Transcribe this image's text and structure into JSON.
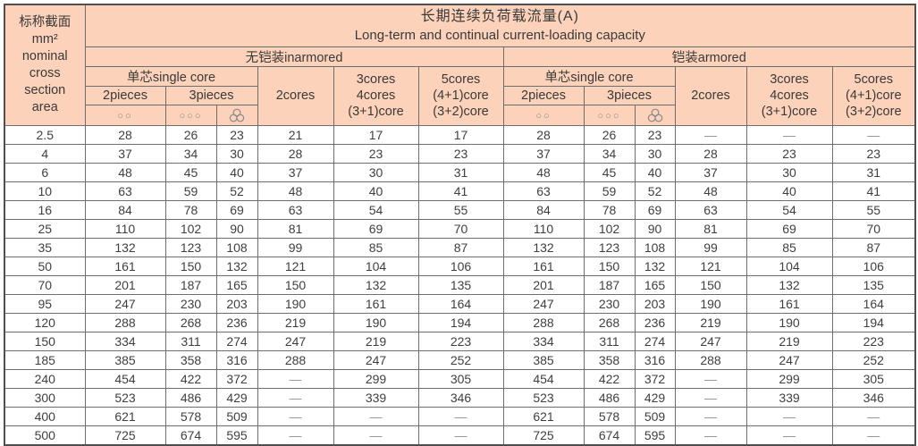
{
  "colors": {
    "header_bg": "#fcd2ba",
    "inner_border": "#6e6e6e",
    "outer_border": "#4f4f4f",
    "text": "#3a3a3a",
    "dash_text": "#919191"
  },
  "table": {
    "corner": {
      "lines": [
        "标称截面",
        "mm²",
        "nominal",
        "cross",
        "section",
        "area"
      ]
    },
    "title": {
      "zh": "长期连续负荷载流量(A)",
      "en": "Long-term and continual current-loading capacity"
    },
    "section_unarmored": "无铠装inarmored",
    "section_armored": "铠装armored",
    "single_core": "单芯single core",
    "two_pieces": "2pieces",
    "three_pieces": "3pieces",
    "two_cores": "2cores",
    "three_four_cores_lines": [
      "3cores",
      "4cores",
      "(3+1)core"
    ],
    "five_cores_lines": [
      "5cores",
      "(4+1)core",
      "(3+2)core"
    ],
    "symbols": {
      "two_circles": "○○",
      "three_circles": "○○○",
      "trefoil": "trefoil-three-circles"
    },
    "rows": [
      [
        "2.5",
        "28",
        "26",
        "23",
        "21",
        "17",
        "17",
        "28",
        "26",
        "23",
        "—",
        "—",
        "—"
      ],
      [
        "4",
        "37",
        "34",
        "30",
        "28",
        "23",
        "23",
        "37",
        "34",
        "30",
        "28",
        "23",
        "23"
      ],
      [
        "6",
        "48",
        "45",
        "40",
        "37",
        "30",
        "31",
        "48",
        "45",
        "40",
        "37",
        "30",
        "31"
      ],
      [
        "10",
        "63",
        "59",
        "52",
        "48",
        "40",
        "41",
        "63",
        "59",
        "52",
        "48",
        "40",
        "41"
      ],
      [
        "16",
        "84",
        "78",
        "69",
        "63",
        "54",
        "55",
        "84",
        "78",
        "69",
        "63",
        "54",
        "55"
      ],
      [
        "25",
        "110",
        "102",
        "90",
        "81",
        "69",
        "70",
        "110",
        "102",
        "90",
        "81",
        "69",
        "70"
      ],
      [
        "35",
        "132",
        "123",
        "108",
        "99",
        "85",
        "87",
        "132",
        "123",
        "108",
        "99",
        "85",
        "87"
      ],
      [
        "50",
        "161",
        "150",
        "132",
        "121",
        "104",
        "106",
        "161",
        "150",
        "132",
        "121",
        "104",
        "106"
      ],
      [
        "70",
        "201",
        "187",
        "165",
        "150",
        "132",
        "135",
        "201",
        "187",
        "165",
        "150",
        "132",
        "135"
      ],
      [
        "95",
        "247",
        "230",
        "203",
        "190",
        "161",
        "164",
        "247",
        "230",
        "203",
        "190",
        "161",
        "164"
      ],
      [
        "120",
        "288",
        "268",
        "236",
        "219",
        "190",
        "194",
        "288",
        "268",
        "236",
        "219",
        "190",
        "194"
      ],
      [
        "150",
        "334",
        "311",
        "274",
        "247",
        "219",
        "223",
        "334",
        "311",
        "274",
        "247",
        "219",
        "223"
      ],
      [
        "185",
        "385",
        "358",
        "316",
        "288",
        "247",
        "252",
        "385",
        "358",
        "316",
        "288",
        "247",
        "252"
      ],
      [
        "240",
        "454",
        "422",
        "372",
        "—",
        "299",
        "305",
        "454",
        "422",
        "372",
        "—",
        "299",
        "305"
      ],
      [
        "300",
        "523",
        "486",
        "429",
        "—",
        "339",
        "346",
        "523",
        "486",
        "429",
        "—",
        "339",
        "346"
      ],
      [
        "400",
        "621",
        "578",
        "509",
        "—",
        "—",
        "—",
        "621",
        "578",
        "509",
        "—",
        "—",
        "—"
      ],
      [
        "500",
        "725",
        "674",
        "595",
        "—",
        "—",
        "—",
        "725",
        "674",
        "595",
        "—",
        "—",
        "—"
      ]
    ]
  },
  "chart_data": {
    "type": "table",
    "title": "长期连续负荷载流量(A) Long-term and continual current-loading capacity",
    "row_header": "nominal cross section area mm²",
    "categories": [
      "2.5",
      "4",
      "6",
      "10",
      "16",
      "25",
      "35",
      "50",
      "70",
      "95",
      "120",
      "150",
      "185",
      "240",
      "300",
      "400",
      "500"
    ],
    "series": [
      {
        "name": "unarmored single-core 2pieces",
        "values": [
          28,
          37,
          48,
          63,
          84,
          110,
          132,
          161,
          201,
          247,
          288,
          334,
          385,
          454,
          523,
          621,
          725
        ]
      },
      {
        "name": "unarmored single-core 3pieces flat",
        "values": [
          26,
          34,
          45,
          59,
          78,
          102,
          123,
          150,
          187,
          230,
          268,
          311,
          358,
          422,
          486,
          578,
          674
        ]
      },
      {
        "name": "unarmored single-core 3pieces trefoil",
        "values": [
          23,
          30,
          40,
          52,
          69,
          90,
          108,
          132,
          165,
          203,
          236,
          274,
          316,
          372,
          429,
          509,
          595
        ]
      },
      {
        "name": "unarmored 2cores",
        "values": [
          21,
          28,
          37,
          48,
          63,
          81,
          99,
          121,
          150,
          190,
          219,
          247,
          288,
          null,
          null,
          null,
          null
        ]
      },
      {
        "name": "unarmored 3cores/4cores/(3+1)core",
        "values": [
          17,
          23,
          30,
          40,
          54,
          69,
          85,
          104,
          132,
          161,
          190,
          219,
          247,
          299,
          339,
          null,
          null
        ]
      },
      {
        "name": "unarmored 5cores/(4+1)core/(3+2)core",
        "values": [
          17,
          23,
          31,
          41,
          55,
          70,
          87,
          106,
          135,
          164,
          194,
          223,
          252,
          305,
          346,
          null,
          null
        ]
      },
      {
        "name": "armored single-core 2pieces",
        "values": [
          28,
          37,
          48,
          63,
          84,
          110,
          132,
          161,
          201,
          247,
          288,
          334,
          385,
          454,
          523,
          621,
          725
        ]
      },
      {
        "name": "armored single-core 3pieces flat",
        "values": [
          26,
          34,
          45,
          59,
          78,
          102,
          123,
          150,
          187,
          230,
          268,
          311,
          358,
          422,
          486,
          578,
          674
        ]
      },
      {
        "name": "armored single-core 3pieces trefoil",
        "values": [
          23,
          30,
          40,
          52,
          69,
          90,
          108,
          132,
          165,
          203,
          236,
          274,
          316,
          372,
          429,
          509,
          595
        ]
      },
      {
        "name": "armored 2cores",
        "values": [
          null,
          28,
          37,
          48,
          63,
          81,
          99,
          121,
          150,
          190,
          219,
          247,
          288,
          null,
          null,
          null,
          null
        ]
      },
      {
        "name": "armored 3cores/4cores/(3+1)core",
        "values": [
          null,
          23,
          30,
          40,
          54,
          69,
          85,
          104,
          132,
          161,
          190,
          219,
          247,
          299,
          339,
          null,
          null
        ]
      },
      {
        "name": "armored 5cores/(4+1)core/(3+2)core",
        "values": [
          null,
          23,
          31,
          41,
          55,
          70,
          87,
          106,
          135,
          164,
          194,
          223,
          252,
          305,
          346,
          null,
          null
        ]
      }
    ]
  }
}
